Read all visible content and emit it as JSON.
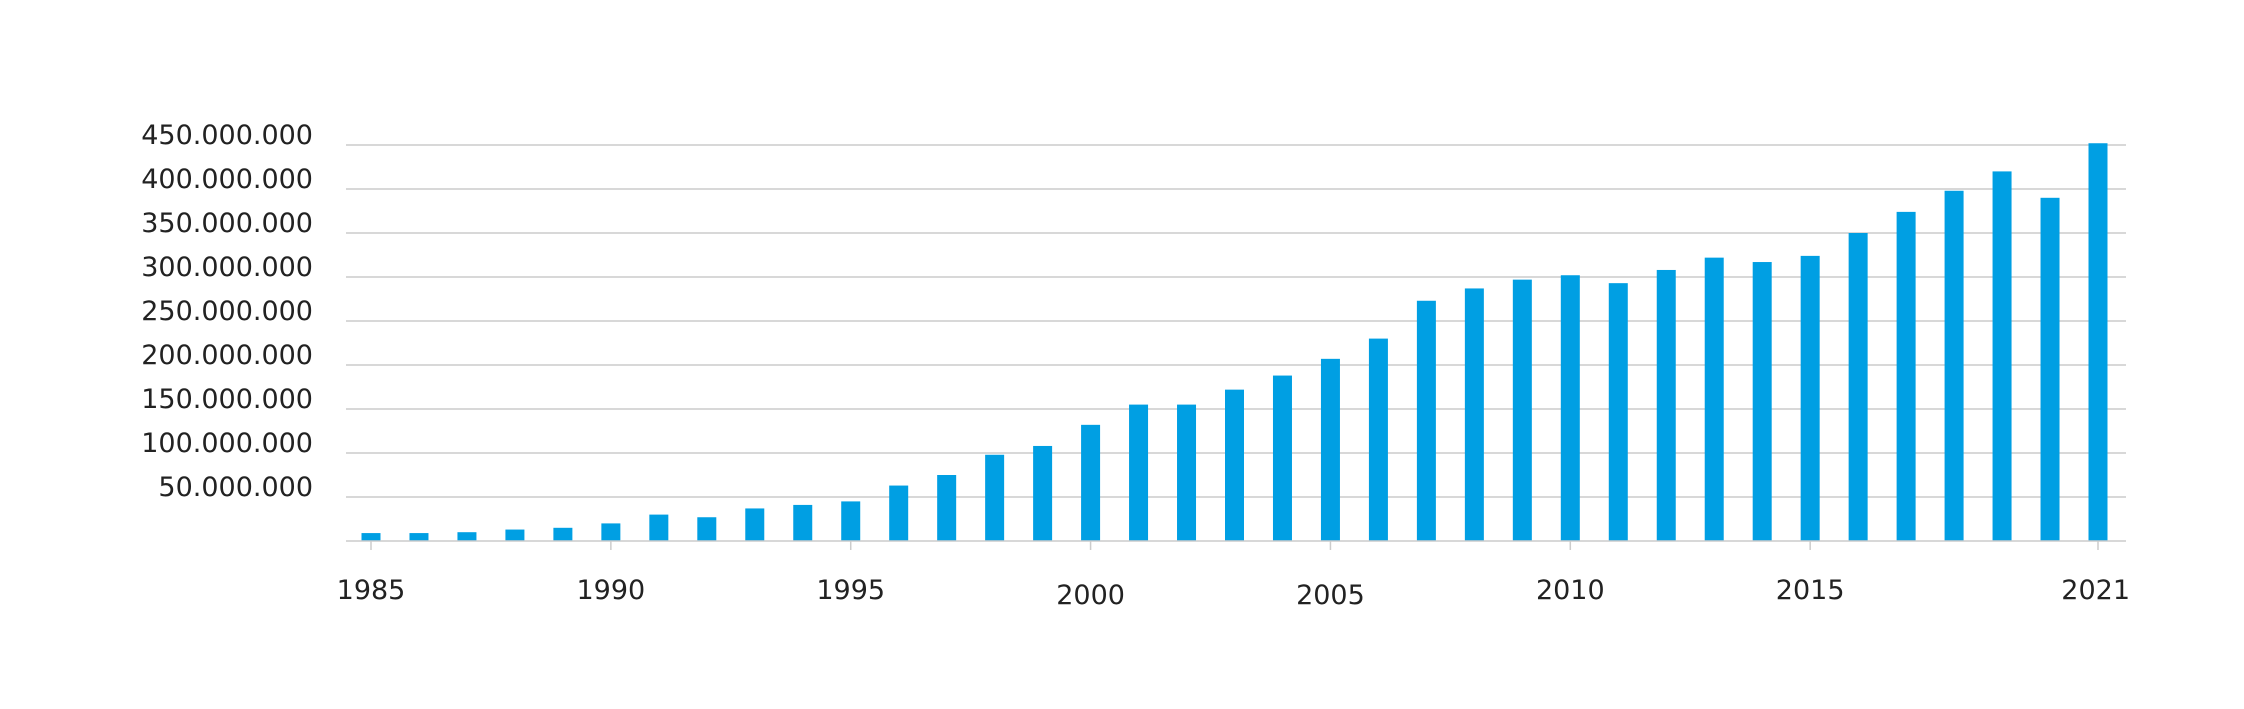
{
  "chart_data": {
    "type": "bar",
    "title": "",
    "xlabel": "",
    "ylabel": "",
    "ylim": [
      0,
      450000000
    ],
    "grid": true,
    "legend": "none",
    "bar_color": "#009fe3",
    "grid_color": "#cccccc",
    "categories": [
      "1985",
      "1986",
      "1987",
      "1988",
      "1989",
      "1990",
      "1991",
      "1992",
      "1993",
      "1994",
      "1995",
      "1996",
      "1997",
      "1998",
      "1999",
      "2000",
      "2001",
      "2002",
      "2003",
      "2004",
      "2005",
      "2006",
      "2007",
      "2008",
      "2009",
      "2010",
      "2011",
      "2012",
      "2013",
      "2014",
      "2015",
      "2016",
      "2017",
      "2018",
      "2019",
      "2020",
      "2021"
    ],
    "x_tick_labels": [
      "1985",
      "1990",
      "1995",
      "2000",
      "2005",
      "2010",
      "2015",
      "2021"
    ],
    "y_ticks": [
      50000000,
      100000000,
      150000000,
      200000000,
      250000000,
      300000000,
      350000000,
      400000000,
      450000000
    ],
    "y_tick_labels": [
      "50.000.000",
      "100.000.000",
      "150.000.000",
      "200.000.000",
      "250.000.000",
      "300.000.000",
      "350.000.000",
      "400.000.000",
      "450.000.000"
    ],
    "values": [
      9000000,
      9000000,
      10000000,
      13000000,
      15000000,
      20000000,
      30000000,
      27000000,
      37000000,
      41000000,
      45000000,
      63000000,
      75000000,
      98000000,
      108000000,
      132000000,
      155000000,
      155000000,
      172000000,
      188000000,
      207000000,
      230000000,
      273000000,
      287000000,
      297000000,
      302000000,
      293000000,
      308000000,
      322000000,
      317000000,
      324000000,
      350000000,
      374000000,
      398000000,
      420000000,
      390000000,
      452000000
    ]
  }
}
